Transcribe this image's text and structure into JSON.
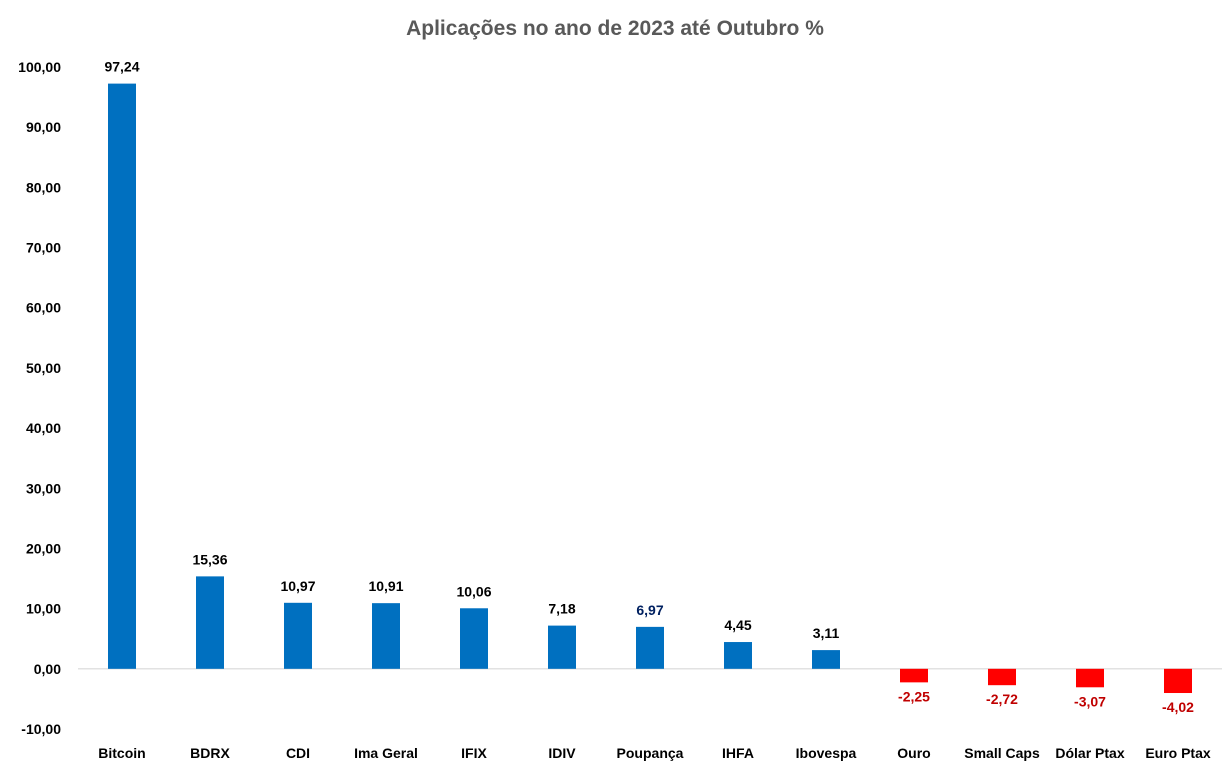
{
  "chart_data": {
    "type": "bar",
    "title": "Aplicações no ano de 2023 até Outubro %",
    "xlabel": "",
    "ylabel": "",
    "categories": [
      "Bitcoin",
      "BDRX",
      "CDI",
      "Ima Geral",
      "IFIX",
      "IDIV",
      "Poupança",
      "IHFA",
      "Ibovespa",
      "Ouro",
      "Small Caps",
      "Dólar Ptax",
      "Euro Ptax"
    ],
    "values": [
      97.24,
      15.36,
      10.97,
      10.91,
      10.06,
      7.18,
      6.97,
      4.45,
      3.11,
      -2.25,
      -2.72,
      -3.07,
      -4.02
    ],
    "data_labels": [
      "97,24",
      "15,36",
      "10,97",
      "10,91",
      "10,06",
      "7,18",
      "6,97",
      "4,45",
      "3,11",
      "-2,25",
      "-2,72",
      "-3,07",
      "-4,02"
    ],
    "ylim": [
      -10,
      100
    ],
    "yticks": [
      100,
      90,
      80,
      70,
      60,
      50,
      40,
      30,
      20,
      10,
      0,
      -10
    ],
    "ytick_labels": [
      "100,00",
      "90,00",
      "80,00",
      "70,00",
      "60,00",
      "50,00",
      "40,00",
      "30,00",
      "20,00",
      "10,00",
      "0,00",
      "-10,00"
    ],
    "grid": false,
    "legend": "none",
    "colors": {
      "positive": "#0070C0",
      "negative": "#FF0000",
      "positive_label": "#000000",
      "highlight_label": "#002060",
      "negative_label": "#C00000",
      "axis": "#D9D9D9"
    },
    "highlight_label_index": 6
  }
}
